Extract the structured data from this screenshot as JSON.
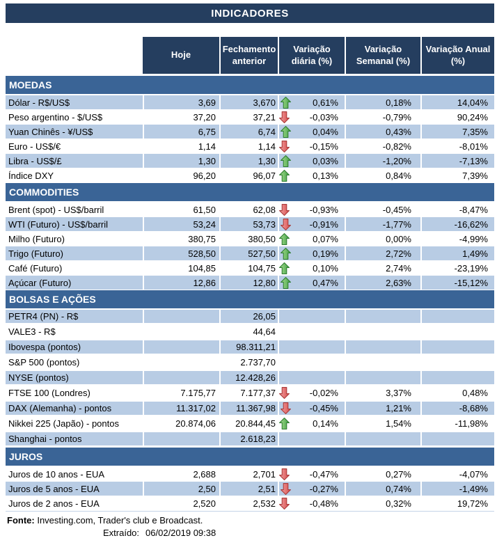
{
  "title": "INDICADORES",
  "columns": [
    "Hoje",
    "Fechamento anterior",
    "Variação diária (%)",
    "Variação Semanal (%)",
    "Variação Anual (%)"
  ],
  "colors": {
    "header_navy": "#253E5F",
    "section_blue": "#3A6496",
    "row_light_blue": "#B8CCE4",
    "arrow_up_green": "#41A046",
    "arrow_down_red": "#D64B4B"
  },
  "sections": [
    {
      "label": "MOEDAS",
      "rows": [
        {
          "label": "Dólar - R$/US$",
          "hoje": "3,69",
          "fechamento": "3,670",
          "trend": "up",
          "var_diaria": "0,61%",
          "var_semanal": "0,18%",
          "var_anual": "14,04%",
          "shaded": true
        },
        {
          "label": "Peso argentino - $/US$",
          "hoje": "37,20",
          "fechamento": "37,21",
          "trend": "down",
          "var_diaria": "-0,03%",
          "var_semanal": "-0,79%",
          "var_anual": "90,24%",
          "shaded": false
        },
        {
          "label": "Yuan Chinês - ¥/US$",
          "hoje": "6,75",
          "fechamento": "6,74",
          "trend": "up",
          "var_diaria": "0,04%",
          "var_semanal": "0,43%",
          "var_anual": "7,35%",
          "shaded": true
        },
        {
          "label": "Euro - US$/€",
          "hoje": "1,14",
          "fechamento": "1,14",
          "trend": "down",
          "var_diaria": "-0,15%",
          "var_semanal": "-0,82%",
          "var_anual": "-8,01%",
          "shaded": false
        },
        {
          "label": "Libra - US$/£",
          "hoje": "1,30",
          "fechamento": "1,30",
          "trend": "up",
          "var_diaria": "0,03%",
          "var_semanal": "-1,20%",
          "var_anual": "-7,13%",
          "shaded": true
        },
        {
          "label": "Índice DXY",
          "hoje": "96,20",
          "fechamento": "96,07",
          "trend": "up",
          "var_diaria": "0,13%",
          "var_semanal": "0,84%",
          "var_anual": "7,39%",
          "shaded": false
        }
      ]
    },
    {
      "label": "COMMODITIES",
      "rows": [
        {
          "label": "Brent (spot) - US$/barril",
          "hoje": "61,50",
          "fechamento": "62,08",
          "trend": "down",
          "var_diaria": "-0,93%",
          "var_semanal": "-0,45%",
          "var_anual": "-8,47%",
          "shaded": false
        },
        {
          "label": "WTI (Futuro) - US$/barril",
          "hoje": "53,24",
          "fechamento": "53,73",
          "trend": "down",
          "var_diaria": "-0,91%",
          "var_semanal": "-1,77%",
          "var_anual": "-16,62%",
          "shaded": true
        },
        {
          "label": "Milho (Futuro)",
          "hoje": "380,75",
          "fechamento": "380,50",
          "trend": "up",
          "var_diaria": "0,07%",
          "var_semanal": "0,00%",
          "var_anual": "-4,99%",
          "shaded": false
        },
        {
          "label": "Trigo (Futuro)",
          "hoje": "528,50",
          "fechamento": "527,50",
          "trend": "up",
          "var_diaria": "0,19%",
          "var_semanal": "2,72%",
          "var_anual": "1,49%",
          "shaded": true
        },
        {
          "label": "Café (Futuro)",
          "hoje": "104,85",
          "fechamento": "104,75",
          "trend": "up",
          "var_diaria": "0,10%",
          "var_semanal": "2,74%",
          "var_anual": "-23,19%",
          "shaded": false
        },
        {
          "label": "Açúcar (Futuro)",
          "hoje": "12,86",
          "fechamento": "12,80",
          "trend": "up",
          "var_diaria": "0,47%",
          "var_semanal": "2,63%",
          "var_anual": "-15,12%",
          "shaded": true
        }
      ]
    },
    {
      "label": "BOLSAS E AÇÕES",
      "rows": [
        {
          "label": "PETR4 (PN) - R$",
          "hoje": "",
          "fechamento": "26,05",
          "trend": null,
          "var_diaria": "",
          "var_semanal": "",
          "var_anual": "",
          "shaded": true
        },
        {
          "label": "VALE3 - R$",
          "hoje": "",
          "fechamento": "44,64",
          "trend": null,
          "var_diaria": "",
          "var_semanal": "",
          "var_anual": "",
          "shaded": false
        },
        {
          "label": "Ibovespa (pontos)",
          "hoje": "",
          "fechamento": "98.311,21",
          "trend": null,
          "var_diaria": "",
          "var_semanal": "",
          "var_anual": "",
          "shaded": true
        },
        {
          "label": "S&P 500 (pontos)",
          "hoje": "",
          "fechamento": "2.737,70",
          "trend": null,
          "var_diaria": "",
          "var_semanal": "",
          "var_anual": "",
          "shaded": false
        },
        {
          "label": "NYSE (pontos)",
          "hoje": "",
          "fechamento": "12.428,26",
          "trend": null,
          "var_diaria": "",
          "var_semanal": "",
          "var_anual": "",
          "shaded": true
        },
        {
          "label": "FTSE 100 (Londres)",
          "hoje": "7.175,77",
          "fechamento": "7.177,37",
          "trend": "down",
          "var_diaria": "-0,02%",
          "var_semanal": "3,37%",
          "var_anual": "0,48%",
          "shaded": false
        },
        {
          "label": "DAX (Alemanha) - pontos",
          "hoje": "11.317,02",
          "fechamento": "11.367,98",
          "trend": "down",
          "var_diaria": "-0,45%",
          "var_semanal": "1,21%",
          "var_anual": "-8,68%",
          "shaded": true
        },
        {
          "label": "Nikkei 225 (Japão) - pontos",
          "hoje": "20.874,06",
          "fechamento": "20.844,45",
          "trend": "up",
          "var_diaria": "0,14%",
          "var_semanal": "1,54%",
          "var_anual": "-11,98%",
          "shaded": false
        },
        {
          "label": "Shanghai - pontos",
          "hoje": "",
          "fechamento": "2.618,23",
          "trend": null,
          "var_diaria": "",
          "var_semanal": "",
          "var_anual": "",
          "shaded": true
        }
      ]
    },
    {
      "label": "JUROS",
      "rows": [
        {
          "label": "Juros de 10 anos - EUA",
          "hoje": "2,688",
          "fechamento": "2,701",
          "trend": "down",
          "var_diaria": "-0,47%",
          "var_semanal": "0,27%",
          "var_anual": "-4,07%",
          "shaded": false
        },
        {
          "label": "Juros de 5 anos - EUA",
          "hoje": "2,50",
          "fechamento": "2,51",
          "trend": "down",
          "var_diaria": "-0,27%",
          "var_semanal": "0,74%",
          "var_anual": "-1,49%",
          "shaded": true
        },
        {
          "label": "Juros de 2 anos - EUA",
          "hoje": "2,520",
          "fechamento": "2,532",
          "trend": "down",
          "var_diaria": "-0,48%",
          "var_semanal": "0,32%",
          "var_anual": "19,72%",
          "shaded": false
        }
      ]
    }
  ],
  "footer": {
    "source_label": "Fonte:",
    "source_text": " Investing.com, Trader's club e Broadcast.",
    "extracted_label": "Extraído:",
    "extracted_value": "06/02/2019 09:38"
  }
}
